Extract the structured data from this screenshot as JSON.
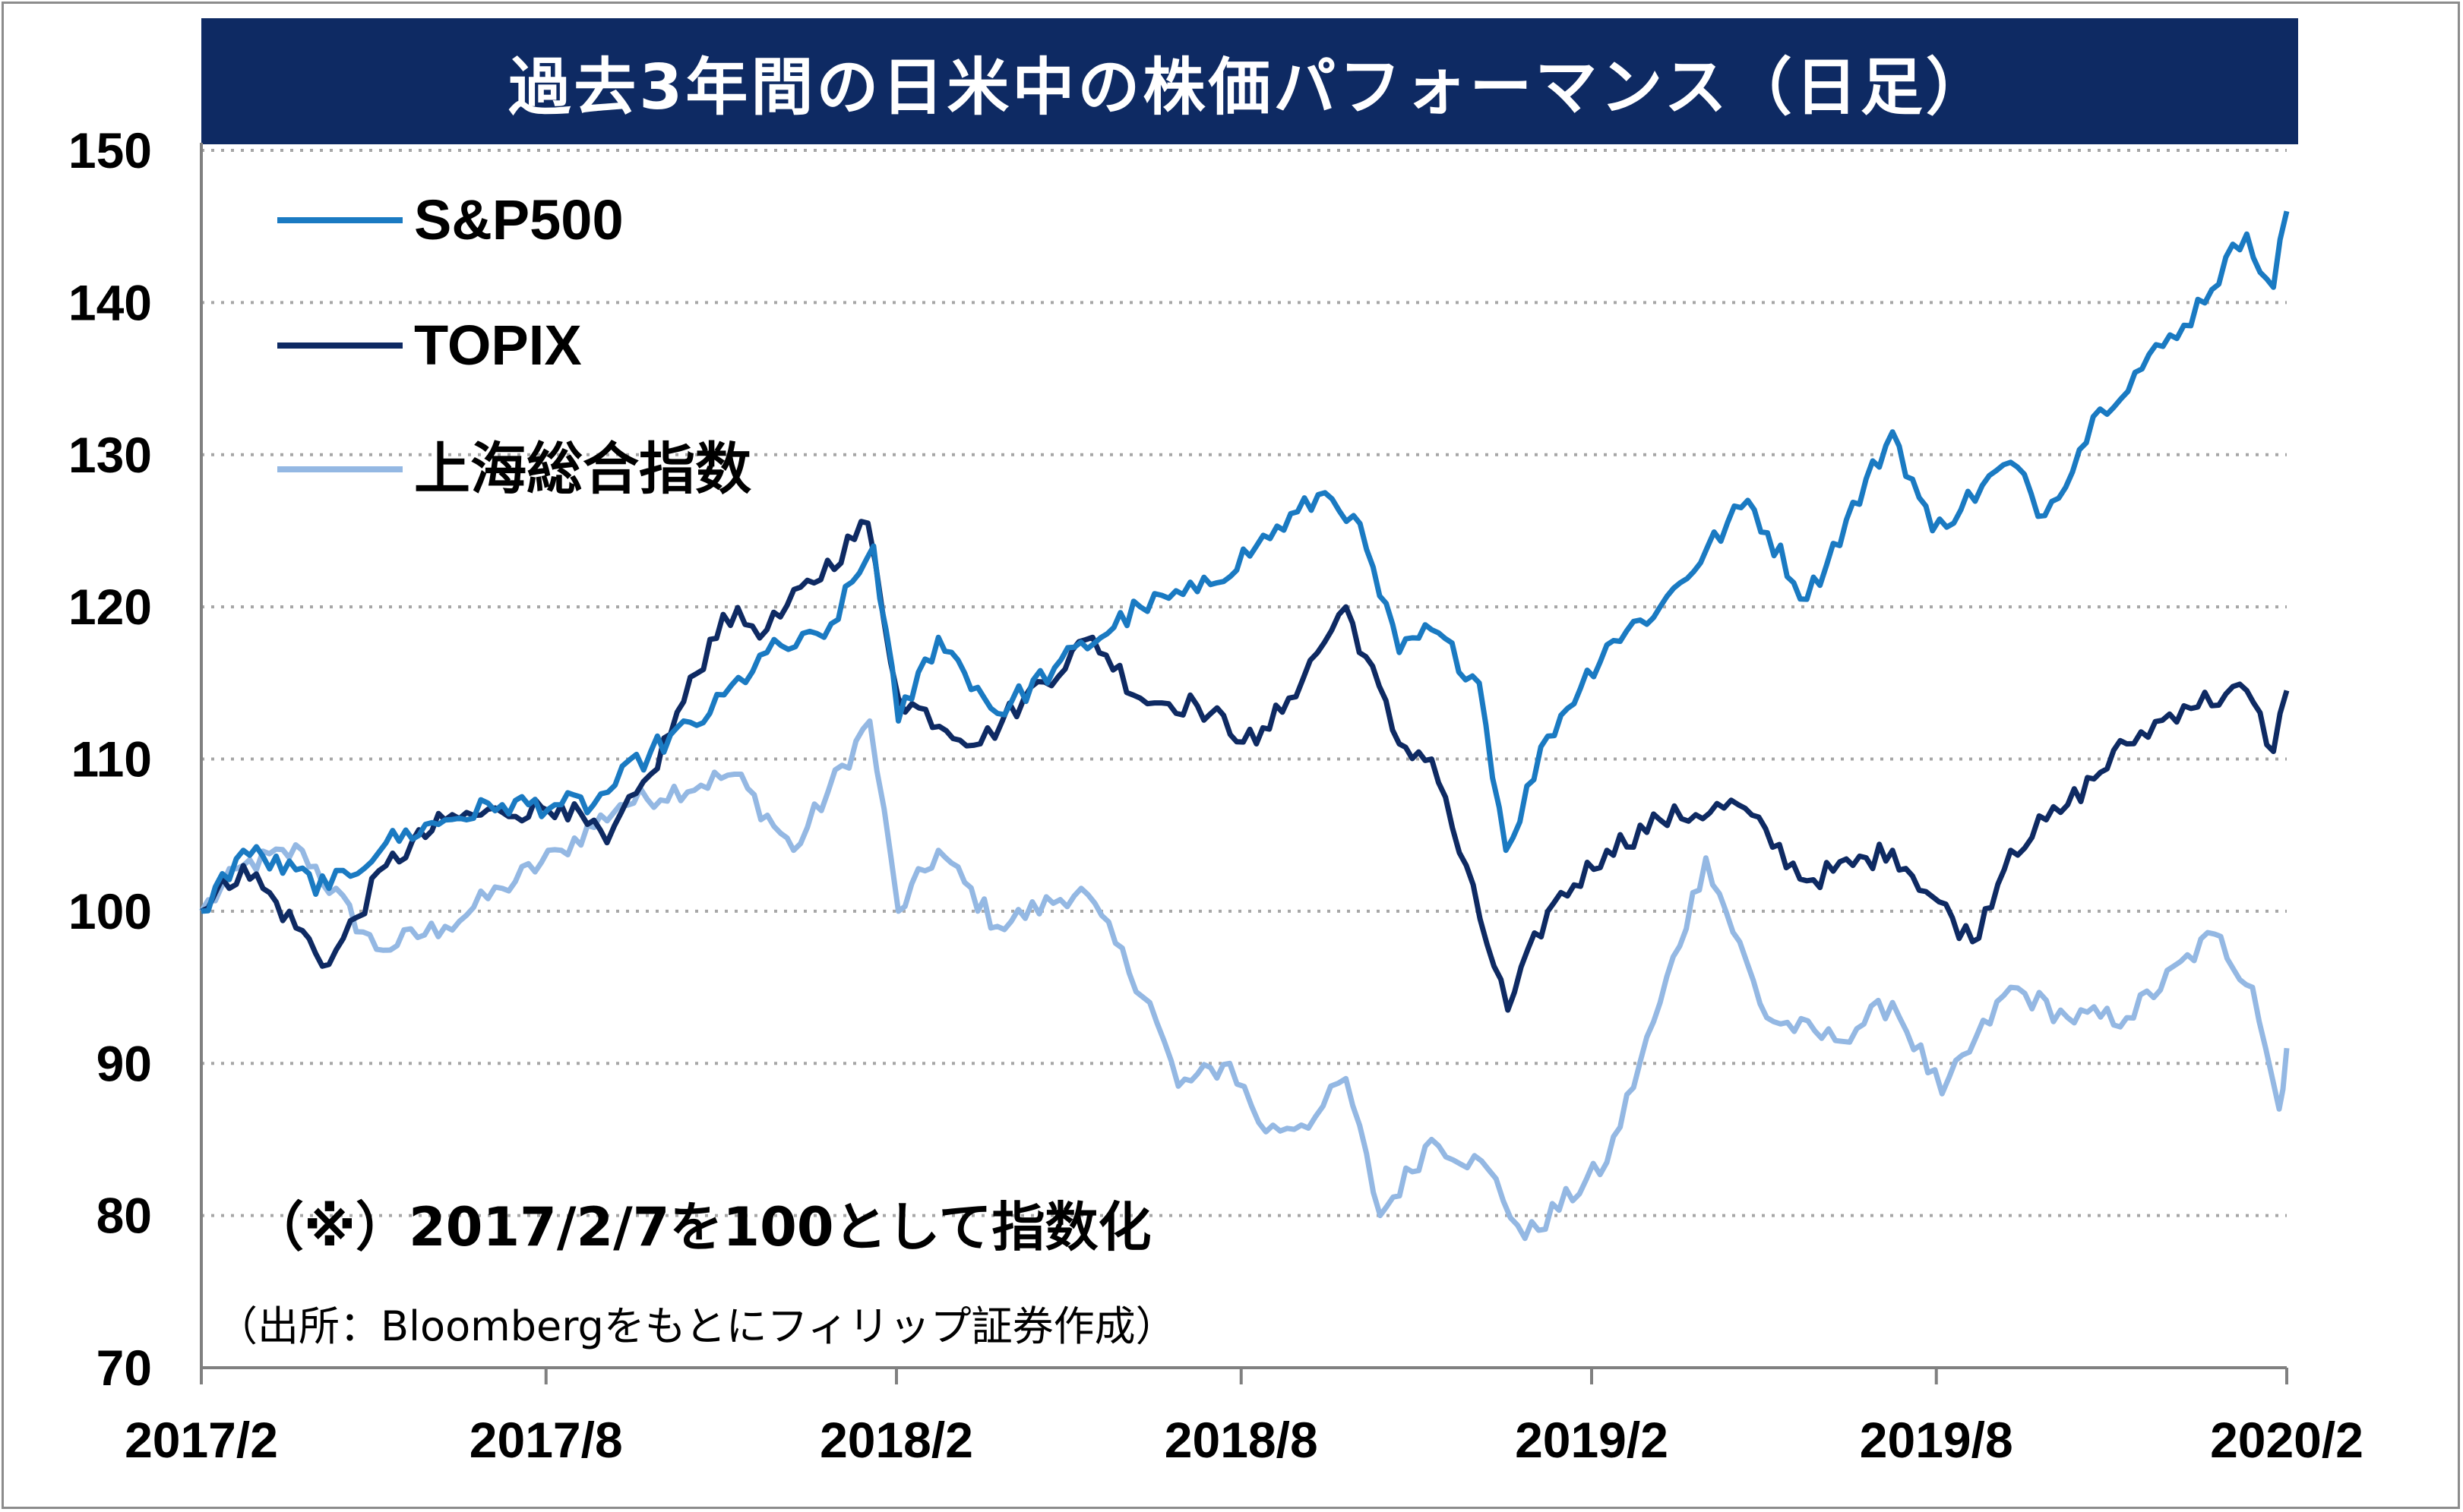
{
  "chart_data": {
    "type": "line",
    "title": "過去3年間の日米中の株価パフォーマンス（日足）",
    "x_ticks": [
      "2017/2",
      "2017/8",
      "2018/2",
      "2018/8",
      "2019/2",
      "2019/8",
      "2020/2"
    ],
    "y_ticks": [
      150,
      140,
      130,
      120,
      110,
      100,
      90,
      80,
      70
    ],
    "ylim": [
      70,
      150
    ],
    "xlim": [
      "2017-02-07",
      "2020-02-07"
    ],
    "grid": "horizontal dotted",
    "legend_position": "top-left",
    "series": [
      {
        "name": "S&P500",
        "color": "#1a7ac2",
        "points": [
          [
            "2017-02-07",
            100
          ],
          [
            "2017-03-01",
            104
          ],
          [
            "2017-04-15",
            101.5
          ],
          [
            "2017-05-15",
            104.5
          ],
          [
            "2017-06-15",
            106
          ],
          [
            "2017-07-15",
            107
          ],
          [
            "2017-08-15",
            107
          ],
          [
            "2017-09-01",
            107
          ],
          [
            "2017-10-01",
            110.5
          ],
          [
            "2017-11-01",
            113
          ],
          [
            "2017-12-01",
            117
          ],
          [
            "2017-12-31",
            118
          ],
          [
            "2018-01-26",
            124
          ],
          [
            "2018-02-08",
            112.5
          ],
          [
            "2018-03-01",
            118
          ],
          [
            "2018-04-01",
            113
          ],
          [
            "2018-05-01",
            116
          ],
          [
            "2018-06-15",
            120
          ],
          [
            "2018-07-15",
            121
          ],
          [
            "2018-08-15",
            124
          ],
          [
            "2018-09-20",
            127.5
          ],
          [
            "2018-10-05",
            126
          ],
          [
            "2018-10-29",
            117
          ],
          [
            "2018-11-15",
            118.5
          ],
          [
            "2018-12-10",
            115
          ],
          [
            "2018-12-24",
            104
          ],
          [
            "2019-01-15",
            111.5
          ],
          [
            "2019-02-15",
            117.5
          ],
          [
            "2019-03-15",
            120
          ],
          [
            "2019-04-30",
            127
          ],
          [
            "2019-05-31",
            120.5
          ],
          [
            "2019-07-15",
            131.5
          ],
          [
            "2019-08-05",
            125
          ],
          [
            "2019-09-15",
            129.5
          ],
          [
            "2019-10-03",
            126
          ],
          [
            "2019-11-01",
            133
          ],
          [
            "2019-12-15",
            138.5
          ],
          [
            "2020-01-17",
            144.5
          ],
          [
            "2020-01-31",
            141
          ],
          [
            "2020-02-07",
            146
          ]
        ]
      },
      {
        "name": "TOPIX",
        "color": "#0e2a63",
        "points": [
          [
            "2017-02-07",
            100
          ],
          [
            "2017-03-01",
            103
          ],
          [
            "2017-04-15",
            96.5
          ],
          [
            "2017-05-15",
            103
          ],
          [
            "2017-06-15",
            106
          ],
          [
            "2017-07-15",
            106.5
          ],
          [
            "2017-08-15",
            107
          ],
          [
            "2017-09-08",
            104.5
          ],
          [
            "2017-10-01",
            109
          ],
          [
            "2017-11-08",
            119.5
          ],
          [
            "2017-12-01",
            118.5
          ],
          [
            "2018-01-23",
            125.5
          ],
          [
            "2018-02-08",
            114
          ],
          [
            "2018-03-23",
            111
          ],
          [
            "2018-04-15",
            114
          ],
          [
            "2018-05-21",
            118
          ],
          [
            "2018-06-15",
            114
          ],
          [
            "2018-07-15",
            113.5
          ],
          [
            "2018-08-15",
            111
          ],
          [
            "2018-09-01",
            114
          ],
          [
            "2018-10-01",
            120
          ],
          [
            "2018-10-29",
            111
          ],
          [
            "2018-11-15",
            110
          ],
          [
            "2018-12-25",
            93.5
          ],
          [
            "2019-01-15",
            100
          ],
          [
            "2019-02-15",
            104
          ],
          [
            "2019-03-15",
            106
          ],
          [
            "2019-04-25",
            107
          ],
          [
            "2019-05-31",
            102
          ],
          [
            "2019-07-15",
            104
          ],
          [
            "2019-08-26",
            98
          ],
          [
            "2019-09-15",
            104
          ],
          [
            "2019-10-15",
            107
          ],
          [
            "2019-11-15",
            111
          ],
          [
            "2019-12-15",
            113.5
          ],
          [
            "2020-01-17",
            114.5
          ],
          [
            "2020-01-31",
            110.5
          ],
          [
            "2020-02-07",
            114.5
          ]
        ]
      },
      {
        "name": "上海総合指数",
        "color": "#94b8e3",
        "points": [
          [
            "2017-02-07",
            100
          ],
          [
            "2017-03-01",
            103
          ],
          [
            "2017-04-01",
            104
          ],
          [
            "2017-05-10",
            97.5
          ],
          [
            "2017-06-15",
            99
          ],
          [
            "2017-07-15",
            101.5
          ],
          [
            "2017-08-15",
            104
          ],
          [
            "2017-09-15",
            107
          ],
          [
            "2017-11-14",
            109
          ],
          [
            "2017-12-15",
            104
          ],
          [
            "2018-01-24",
            112.5
          ],
          [
            "2018-02-08",
            100
          ],
          [
            "2018-03-01",
            104
          ],
          [
            "2018-04-01",
            99
          ],
          [
            "2018-05-15",
            101.5
          ],
          [
            "2018-06-20",
            94
          ],
          [
            "2018-07-05",
            88.5
          ],
          [
            "2018-08-01",
            90
          ],
          [
            "2018-08-20",
            85.5
          ],
          [
            "2018-09-15",
            86.5
          ],
          [
            "2018-10-01",
            89
          ],
          [
            "2018-10-19",
            80
          ],
          [
            "2018-11-15",
            85
          ],
          [
            "2018-12-15",
            83
          ],
          [
            "2019-01-03",
            78.5
          ],
          [
            "2019-02-15",
            83.5
          ],
          [
            "2019-03-15",
            94
          ],
          [
            "2019-04-08",
            103.5
          ],
          [
            "2019-05-10",
            93
          ],
          [
            "2019-06-15",
            91.5
          ],
          [
            "2019-07-15",
            94
          ],
          [
            "2019-08-10",
            88
          ],
          [
            "2019-09-15",
            95
          ],
          [
            "2019-10-15",
            93
          ],
          [
            "2019-11-15",
            93
          ],
          [
            "2019-12-31",
            98.5
          ],
          [
            "2020-01-20",
            95
          ],
          [
            "2020-02-03",
            87
          ],
          [
            "2020-02-07",
            91
          ]
        ]
      }
    ],
    "annotations": [
      "（※）2017/2/7を100として指数化"
    ]
  },
  "source_note": "（出所：Bloombergをもとにフィリップ証券作成）"
}
